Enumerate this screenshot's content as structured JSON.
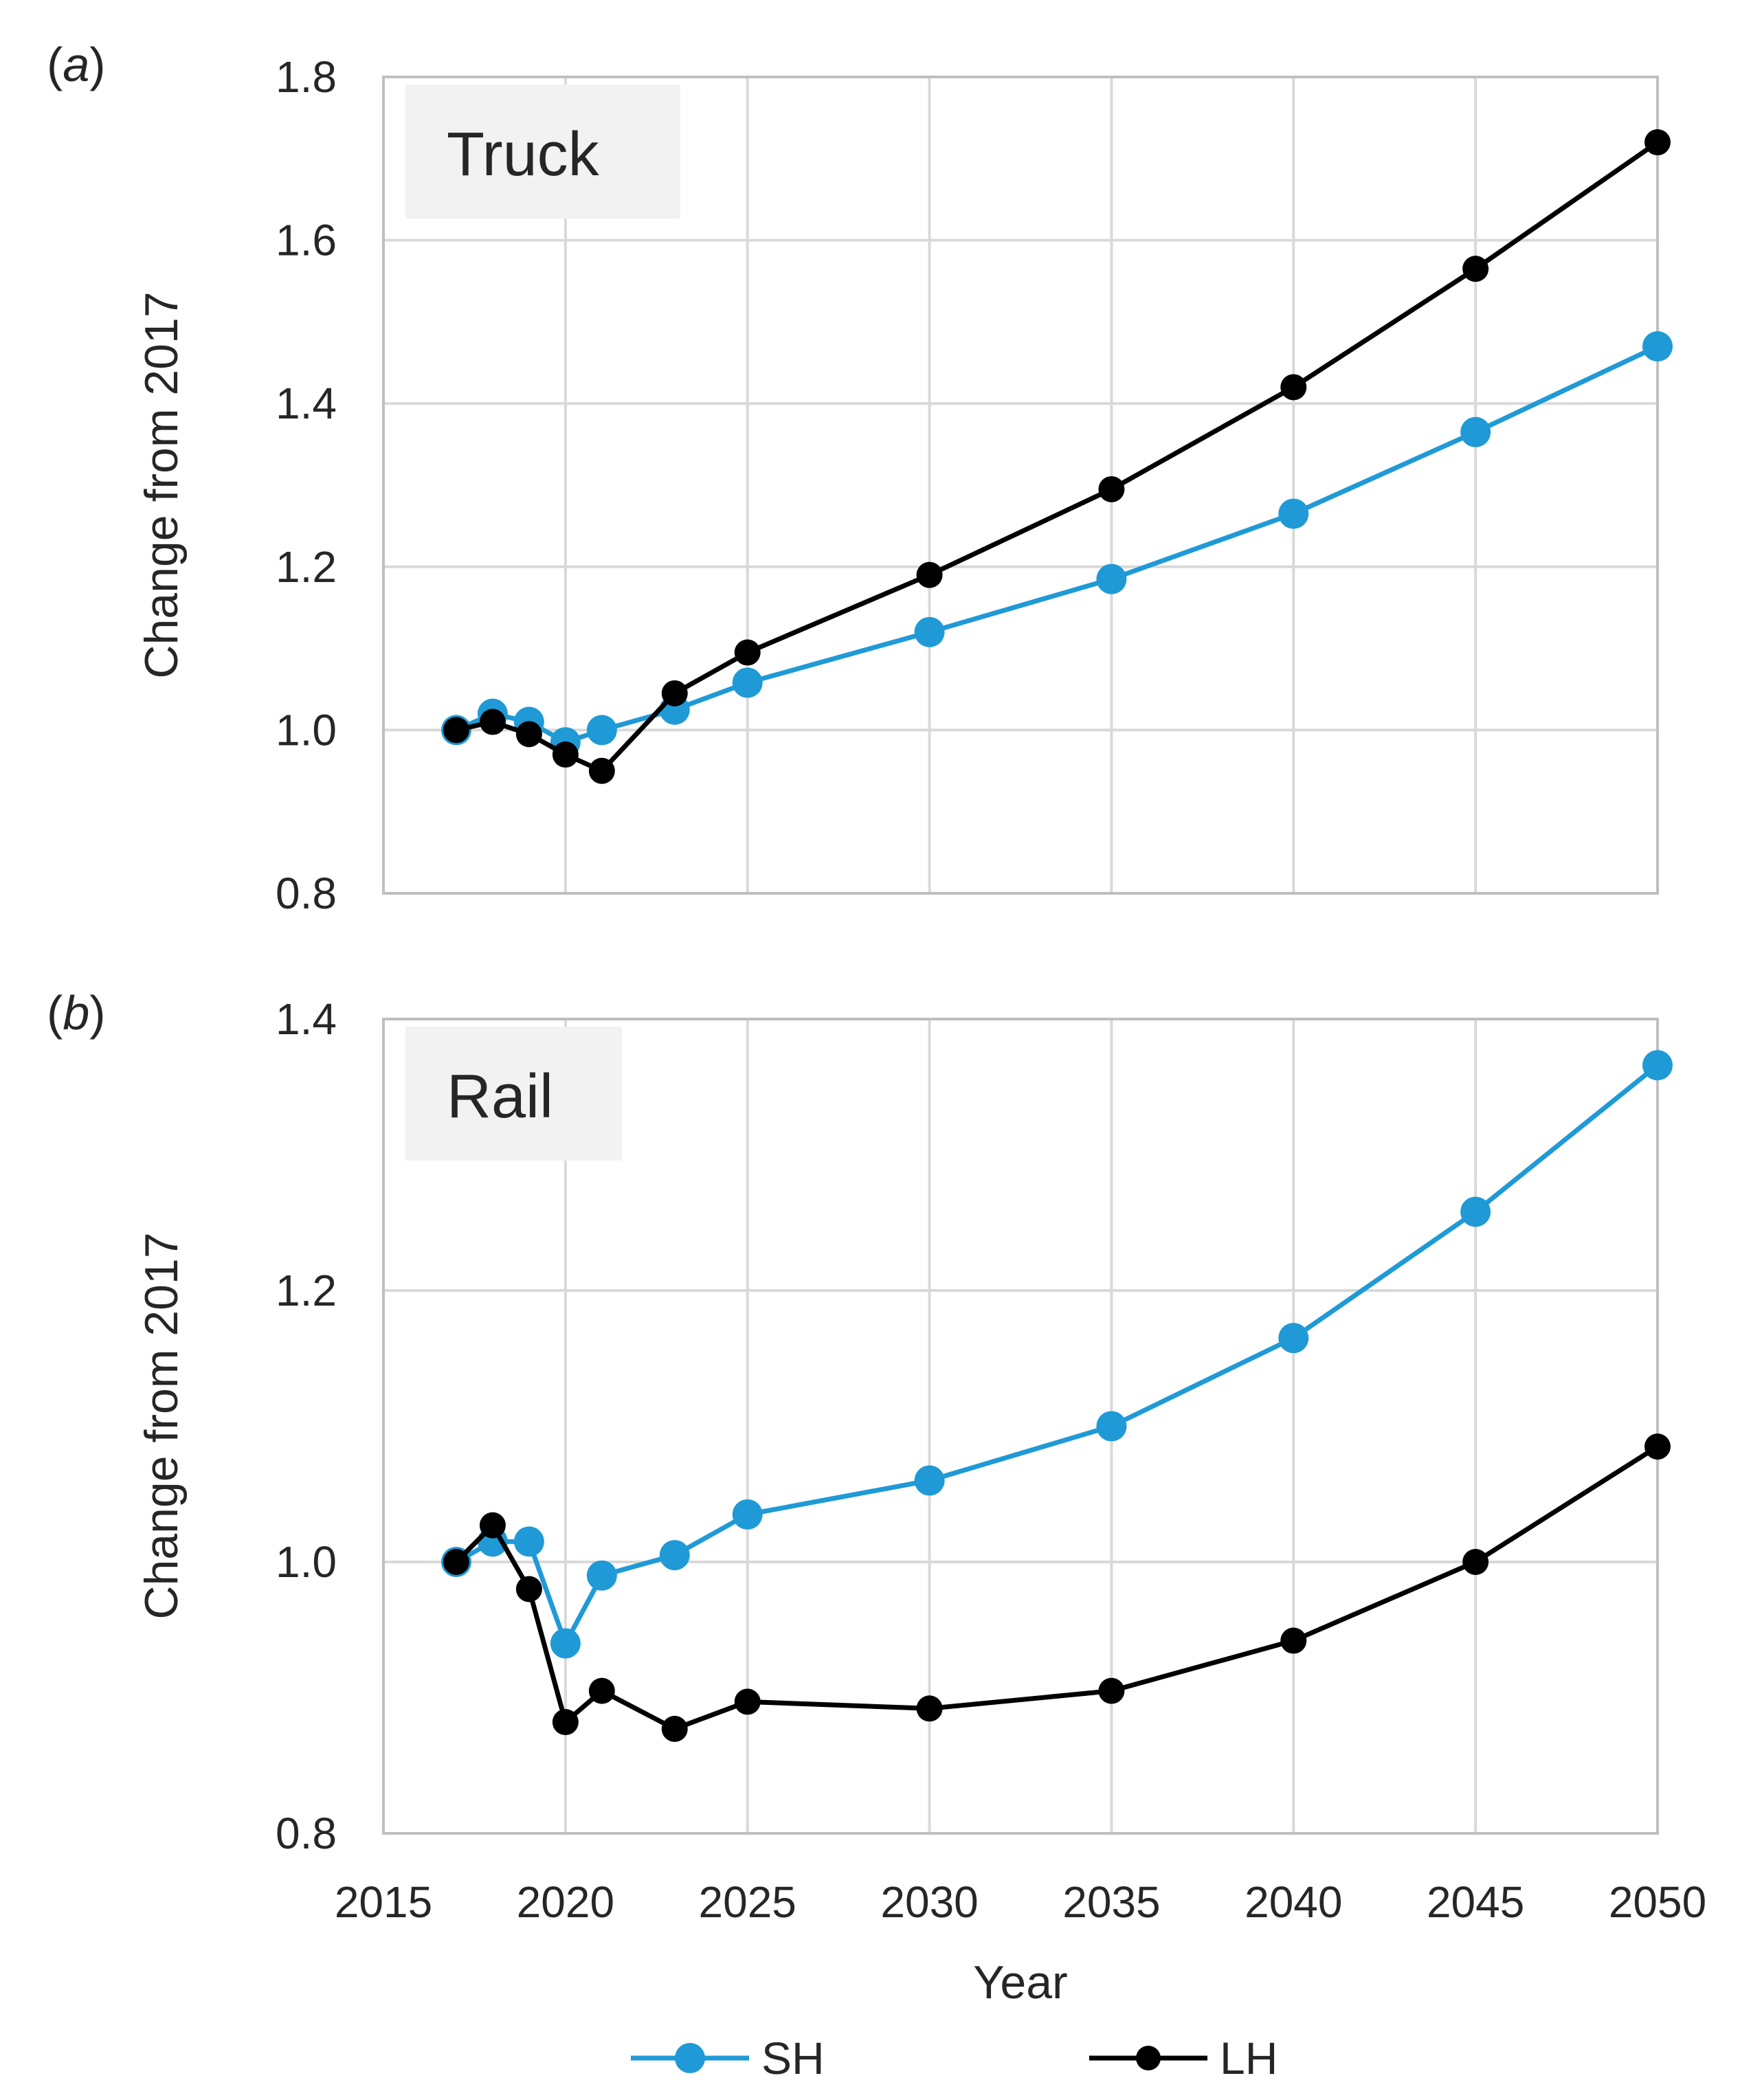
{
  "chart_data": [
    {
      "type": "line",
      "panel_label": "(a)",
      "panel_letter": "a",
      "title": "Truck",
      "xlabel": "",
      "ylabel": "Change from 2017",
      "xlim": [
        2015,
        2050
      ],
      "ylim": [
        0.8,
        1.8
      ],
      "yticks": [
        "0.8",
        "1.0",
        "1.2",
        "1.4",
        "1.6",
        "1.8"
      ],
      "series": [
        {
          "name": "SH",
          "color": "#1f9ad6",
          "x": [
            2017,
            2018,
            2019,
            2020,
            2021,
            2023,
            2025,
            2030,
            2035,
            2040,
            2045,
            2050
          ],
          "values": [
            1.0,
            1.02,
            1.01,
            0.985,
            1.0,
            1.025,
            1.058,
            1.12,
            1.185,
            1.265,
            1.365,
            1.47
          ]
        },
        {
          "name": "LH",
          "color": "#000000",
          "x": [
            2017,
            2018,
            2019,
            2020,
            2021,
            2023,
            2025,
            2030,
            2035,
            2040,
            2045,
            2050
          ],
          "values": [
            1.0,
            1.01,
            0.995,
            0.97,
            0.95,
            1.045,
            1.095,
            1.19,
            1.295,
            1.42,
            1.565,
            1.72
          ]
        }
      ]
    },
    {
      "type": "line",
      "panel_label": "(b)",
      "panel_letter": "b",
      "title": "Rail",
      "xlabel": "Year",
      "ylabel": "Change from 2017",
      "xlim": [
        2015,
        2050
      ],
      "ylim": [
        0.8,
        1.4
      ],
      "yticks": [
        "0.8",
        "1.0",
        "1.2",
        "1.4"
      ],
      "xticks": [
        "2015",
        "2020",
        "2025",
        "2030",
        "2035",
        "2040",
        "2045",
        "2050"
      ],
      "series": [
        {
          "name": "SH",
          "color": "#1f9ad6",
          "x": [
            2017,
            2018,
            2019,
            2020,
            2021,
            2023,
            2025,
            2030,
            2035,
            2040,
            2045,
            2050
          ],
          "values": [
            1.0,
            1.015,
            1.015,
            0.94,
            0.99,
            1.005,
            1.035,
            1.06,
            1.1,
            1.165,
            1.258,
            1.366
          ]
        },
        {
          "name": "LH",
          "color": "#000000",
          "x": [
            2017,
            2018,
            2019,
            2020,
            2021,
            2023,
            2025,
            2030,
            2035,
            2040,
            2045,
            2050
          ],
          "values": [
            1.0,
            1.027,
            0.98,
            0.882,
            0.905,
            0.877,
            0.897,
            0.892,
            0.905,
            0.942,
            1.0,
            1.085
          ]
        }
      ]
    }
  ],
  "legend": [
    {
      "name": "SH",
      "color": "#1f9ad6"
    },
    {
      "name": "LH",
      "color": "#000000"
    }
  ]
}
